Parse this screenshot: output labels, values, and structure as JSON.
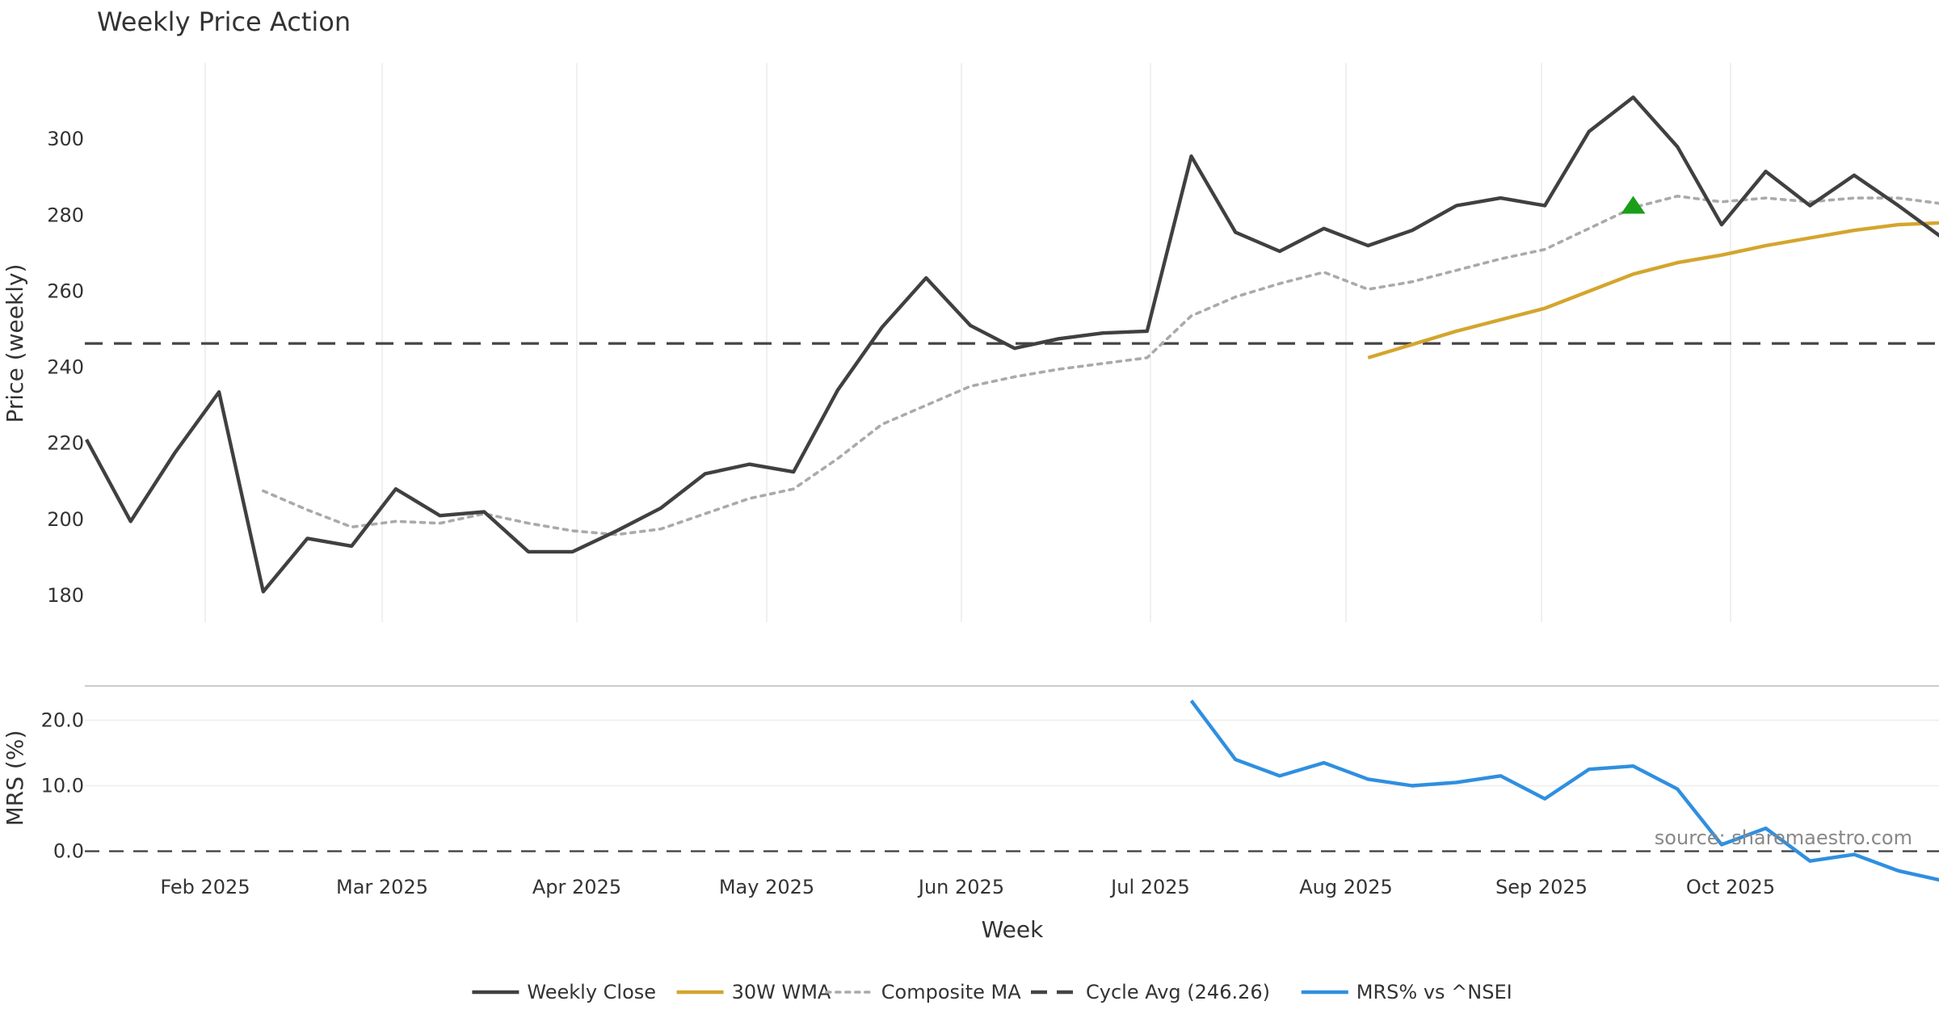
{
  "chart_data": {
    "type": "line",
    "title": "Weekly Price Action",
    "xlabel": "Week",
    "source_note": "source: sharemaestro.com",
    "x_ticks": [
      "Feb 2025",
      "Mar 2025",
      "Apr 2025",
      "May 2025",
      "Jun 2025",
      "Jul 2025",
      "Aug 2025",
      "Sep 2025",
      "Oct 2025"
    ],
    "price_panel": {
      "ylabel": "Price (weekly)",
      "ylim": [
        173,
        320
      ],
      "y_ticks": [
        "180",
        "200",
        "220",
        "240",
        "260",
        "280",
        "300"
      ],
      "series": [
        {
          "name": "Weekly Close",
          "color": "#404040",
          "style": "solid",
          "start_week": 0,
          "values": [
            221,
            199.5,
            217.5,
            233.5,
            181,
            195,
            193,
            208,
            201,
            202,
            191.5,
            191.5,
            197,
            203,
            212,
            214.5,
            212.5,
            234,
            250.5,
            263.5,
            251,
            245,
            247.5,
            249,
            249.5,
            295.5,
            275.5,
            270.5,
            276.5,
            272,
            276,
            282.5,
            284.5,
            282.5,
            302,
            311,
            298,
            277.5,
            291.5,
            282.5,
            290.5,
            282.5,
            274
          ]
        },
        {
          "name": "30W WMA",
          "color": "#d4a52e",
          "style": "solid",
          "start_week": 29,
          "values": [
            242.5,
            246,
            249.5,
            252.5,
            255.5,
            260,
            264.5,
            267.5,
            269.5,
            272,
            274,
            276,
            277.5,
            278
          ]
        },
        {
          "name": "Composite MA",
          "color": "#aaaaaa",
          "style": "dotted",
          "start_week": 4,
          "values": [
            207.5,
            202.5,
            198,
            199.5,
            199,
            201.5,
            199,
            197,
            196,
            197.5,
            201.5,
            205.5,
            208,
            216,
            225,
            230,
            235,
            237.5,
            239.5,
            241,
            242.5,
            253.5,
            258.5,
            262,
            265,
            260.5,
            262.5,
            265.5,
            268.5,
            271,
            276.5,
            282,
            285,
            283.5,
            284.5,
            283.5,
            284.5,
            284.5,
            283
          ]
        }
      ],
      "reference_line": {
        "name": "Cycle Avg (246.26)",
        "value": 246.26,
        "color": "#444444",
        "style": "dashed"
      },
      "markers": [
        {
          "type": "triangle-up",
          "week": 35,
          "value": 282.5,
          "color": "#1a9e1a"
        }
      ]
    },
    "mrs_panel": {
      "ylabel": "MRS (%)",
      "ylim": [
        -4.5,
        24.5
      ],
      "y_ticks": [
        "0.0",
        "10.0",
        "20.0"
      ],
      "series": [
        {
          "name": "MRS% vs ^NSEI",
          "color": "#2f8fe0",
          "style": "solid",
          "start_week": 25,
          "values": [
            23,
            14,
            11.5,
            13.5,
            11,
            10,
            10.5,
            11.5,
            8,
            12.5,
            13,
            9.5,
            1,
            3.5,
            -1.5,
            -0.5,
            -3,
            -4.5
          ]
        }
      ],
      "zero_line": {
        "value": 0,
        "style": "dashed"
      }
    },
    "legend": {
      "placement": "bottom-center",
      "entries": [
        "Weekly Close",
        "30W WMA",
        "Composite MA",
        "Cycle Avg (246.26)",
        "MRS% vs ^NSEI"
      ]
    }
  }
}
